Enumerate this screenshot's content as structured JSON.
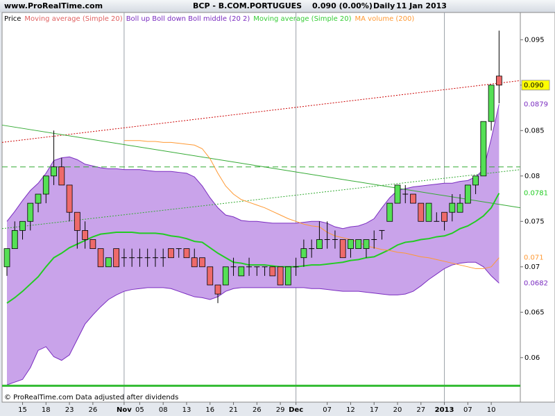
{
  "chart_data": {
    "type": "candlestick",
    "header": {
      "site": "www.ProRealTime.com",
      "symbol": "BCP - B.COM.PORTUGUES",
      "quote": "0.090 (0.00%)",
      "period": "Daily",
      "date": "11 Jan 2013"
    },
    "legend": [
      {
        "text": "Price",
        "color": "#000000"
      },
      {
        "text": "Moving average (Simple 20)",
        "color": "#e06060"
      },
      {
        "text": "Boll up Boll down Boll middle (20 2)",
        "color": "#7a2cc0"
      },
      {
        "text": "Moving average (Simple 20)",
        "color": "#33cc33"
      },
      {
        "text": "MA volume (200)",
        "color": "#ff9933"
      }
    ],
    "footer": "© ProRealTime.com Data adjusted after dividends",
    "categories": [
      null,
      null,
      "15",
      null,
      null,
      "18",
      null,
      null,
      "23",
      null,
      null,
      "26",
      null,
      null,
      null,
      "Nov",
      null,
      "05",
      null,
      null,
      "08",
      null,
      null,
      "13",
      null,
      null,
      "16",
      null,
      null,
      "21",
      null,
      null,
      "26",
      null,
      null,
      "29",
      null,
      "Dec",
      null,
      null,
      null,
      "07",
      null,
      null,
      "12",
      null,
      null,
      "17",
      null,
      null,
      "20",
      null,
      null,
      "27",
      null,
      null,
      "2013",
      null,
      null,
      "07",
      null,
      null,
      "10",
      null
    ],
    "open": [
      0.07,
      0.072,
      0.074,
      0.075,
      0.077,
      0.078,
      0.08,
      0.081,
      0.079,
      0.076,
      0.074,
      0.073,
      0.072,
      0.07,
      0.072,
      0.071,
      0.071,
      0.071,
      0.071,
      0.071,
      0.071,
      0.072,
      0.072,
      0.072,
      0.071,
      0.071,
      0.07,
      0.068,
      0.068,
      0.07,
      0.069,
      0.07,
      0.07,
      0.07,
      0.07,
      0.07,
      0.068,
      0.07,
      0.071,
      0.072,
      0.072,
      0.073,
      0.073,
      0.073,
      0.072,
      0.072,
      0.072,
      0.073,
      0.074,
      0.075,
      0.077,
      0.078,
      0.078,
      0.077,
      0.075,
      0.075,
      0.076,
      0.076,
      0.076,
      0.077,
      0.079,
      0.08,
      0.086,
      0.091
    ],
    "high": [
      0.072,
      0.075,
      0.075,
      0.077,
      0.078,
      0.08,
      0.085,
      0.082,
      0.079,
      0.076,
      0.075,
      0.073,
      0.072,
      0.071,
      0.072,
      0.072,
      0.072,
      0.072,
      0.072,
      0.072,
      0.072,
      0.072,
      0.072,
      0.072,
      0.072,
      0.071,
      0.07,
      0.068,
      0.07,
      0.071,
      0.07,
      0.071,
      0.07,
      0.07,
      0.07,
      0.07,
      0.07,
      0.071,
      0.073,
      0.073,
      0.075,
      0.075,
      0.074,
      0.073,
      0.073,
      0.073,
      0.073,
      0.074,
      0.074,
      0.077,
      0.079,
      0.079,
      0.078,
      0.077,
      0.077,
      0.076,
      0.076,
      0.078,
      0.078,
      0.079,
      0.08,
      0.086,
      0.09,
      0.096
    ],
    "low": [
      0.069,
      0.072,
      0.073,
      0.074,
      0.076,
      0.077,
      0.079,
      0.079,
      0.075,
      0.072,
      0.072,
      0.072,
      0.07,
      0.07,
      0.07,
      0.07,
      0.07,
      0.07,
      0.07,
      0.07,
      0.07,
      0.071,
      0.071,
      0.071,
      0.07,
      0.07,
      0.068,
      0.066,
      0.068,
      0.069,
      0.069,
      0.069,
      0.069,
      0.069,
      0.069,
      0.068,
      0.068,
      0.069,
      0.07,
      0.071,
      0.072,
      0.072,
      0.072,
      0.071,
      0.071,
      0.072,
      0.071,
      0.072,
      0.073,
      0.075,
      0.077,
      0.077,
      0.077,
      0.075,
      0.075,
      0.075,
      0.074,
      0.075,
      0.076,
      0.077,
      0.078,
      0.08,
      0.085,
      0.088
    ],
    "close": [
      0.072,
      0.074,
      0.075,
      0.077,
      0.078,
      0.08,
      0.081,
      0.079,
      0.076,
      0.074,
      0.073,
      0.072,
      0.07,
      0.071,
      0.07,
      0.071,
      0.071,
      0.071,
      0.071,
      0.071,
      0.071,
      0.071,
      0.072,
      0.071,
      0.07,
      0.07,
      0.068,
      0.067,
      0.07,
      0.07,
      0.07,
      0.07,
      0.07,
      0.07,
      0.069,
      0.068,
      0.07,
      0.07,
      0.072,
      0.072,
      0.073,
      0.073,
      0.073,
      0.071,
      0.073,
      0.073,
      0.073,
      0.073,
      0.074,
      0.077,
      0.079,
      0.078,
      0.077,
      0.075,
      0.077,
      0.075,
      0.075,
      0.077,
      0.077,
      0.079,
      0.08,
      0.086,
      0.09,
      0.09
    ],
    "last_label": {
      "value": 0.09,
      "label": "0.090"
    },
    "bands": {
      "color": "#7a2cc0",
      "fill": "#c9a3ea",
      "upper": [
        0.075,
        0.0761,
        0.0773,
        0.0784,
        0.0792,
        0.0803,
        0.0817,
        0.082,
        0.0821,
        0.0818,
        0.0813,
        0.0811,
        0.0809,
        0.0808,
        0.0808,
        0.0807,
        0.0807,
        0.0807,
        0.0806,
        0.0805,
        0.0805,
        0.0805,
        0.0804,
        0.0803,
        0.0799,
        0.0789,
        0.0776,
        0.0765,
        0.0757,
        0.0755,
        0.0751,
        0.075,
        0.075,
        0.0749,
        0.0748,
        0.0748,
        0.0748,
        0.0748,
        0.0749,
        0.075,
        0.075,
        0.0748,
        0.0744,
        0.0742,
        0.0744,
        0.0745,
        0.0748,
        0.0753,
        0.0765,
        0.0776,
        0.0784,
        0.0786,
        0.0788,
        0.0789,
        0.079,
        0.0791,
        0.0792,
        0.0792,
        0.0794,
        0.0795,
        0.0799,
        0.0807,
        0.0841,
        0.0879
      ],
      "lower": [
        0.057,
        0.0573,
        0.0576,
        0.0589,
        0.0608,
        0.0612,
        0.0601,
        0.0597,
        0.0603,
        0.062,
        0.0637,
        0.0647,
        0.0656,
        0.0664,
        0.0669,
        0.0673,
        0.0675,
        0.0676,
        0.0677,
        0.0677,
        0.0677,
        0.0676,
        0.0673,
        0.067,
        0.0667,
        0.0666,
        0.0664,
        0.0667,
        0.0673,
        0.0676,
        0.0677,
        0.0677,
        0.0677,
        0.0677,
        0.0677,
        0.0677,
        0.0677,
        0.0677,
        0.0677,
        0.0676,
        0.0676,
        0.0675,
        0.0674,
        0.0673,
        0.0673,
        0.0673,
        0.0672,
        0.0671,
        0.067,
        0.0669,
        0.0669,
        0.067,
        0.0673,
        0.0679,
        0.0686,
        0.0692,
        0.0698,
        0.0702,
        0.0704,
        0.0705,
        0.0705,
        0.07,
        0.069,
        0.0682
      ],
      "upper_label": 0.0879,
      "lower_label": 0.0682
    },
    "series": [
      {
        "color": "#22cc22",
        "width": 2,
        "last_label": 0.0781,
        "values": [
          0.066,
          0.0666,
          0.0673,
          0.0681,
          0.0689,
          0.07,
          0.071,
          0.0715,
          0.0721,
          0.0725,
          0.0729,
          0.0733,
          0.0736,
          0.0737,
          0.0738,
          0.0738,
          0.0738,
          0.0737,
          0.0737,
          0.0737,
          0.0736,
          0.0734,
          0.0733,
          0.0731,
          0.0728,
          0.0727,
          0.0721,
          0.0715,
          0.071,
          0.0705,
          0.0704,
          0.0702,
          0.0702,
          0.0702,
          0.0701,
          0.07,
          0.07,
          0.07,
          0.0701,
          0.0702,
          0.0702,
          0.0703,
          0.0704,
          0.0705,
          0.0707,
          0.0708,
          0.071,
          0.0711,
          0.0715,
          0.0719,
          0.0724,
          0.0727,
          0.0728,
          0.073,
          0.0731,
          0.0733,
          0.0734,
          0.0737,
          0.0742,
          0.0745,
          0.075,
          0.0756,
          0.0765,
          0.0781
        ]
      },
      {
        "color": "#ff9933",
        "width": 1,
        "last_label": 0.071,
        "values": [
          null,
          null,
          null,
          null,
          null,
          null,
          null,
          null,
          null,
          null,
          null,
          null,
          null,
          null,
          null,
          0.0839,
          0.0839,
          0.0839,
          0.0838,
          0.0838,
          0.0837,
          0.0837,
          0.0836,
          0.0835,
          0.0834,
          0.083,
          0.0819,
          0.0803,
          0.0789,
          0.078,
          0.0774,
          0.0771,
          0.0768,
          0.0765,
          0.0761,
          0.0757,
          0.0753,
          0.075,
          0.0747,
          0.0745,
          0.0744,
          0.0738,
          0.0734,
          0.0732,
          0.073,
          0.0727,
          0.0723,
          0.0721,
          0.0719,
          0.0718,
          0.0716,
          0.0715,
          0.0713,
          0.0711,
          0.071,
          0.0708,
          0.0706,
          0.0704,
          0.0702,
          0.07,
          0.0698,
          0.0698,
          0.07,
          0.071
        ]
      }
    ],
    "trendlines": [
      {
        "color": "#cc0000",
        "style": "dotted",
        "values": [
          0.0837,
          0.0905
        ]
      },
      {
        "color": "#33aa33",
        "style": "solid",
        "values": [
          0.0856,
          0.0765
        ]
      },
      {
        "color": "#33aa33",
        "style": "dotted",
        "values": [
          0.0742,
          0.0807
        ]
      },
      {
        "color": "#33aa33",
        "style": "dashed",
        "values": [
          0.081,
          0.081
        ]
      },
      {
        "color": "#33bb33",
        "style": "thick",
        "values": [
          0.0569,
          0.0569
        ]
      }
    ],
    "up_color": "#55e055",
    "down_color": "#ee6a6a",
    "ylim": [
      0.0551,
      0.098
    ],
    "yticks": [
      0.06,
      0.065,
      0.07,
      0.075,
      0.08,
      0.085,
      0.09,
      0.095
    ]
  }
}
